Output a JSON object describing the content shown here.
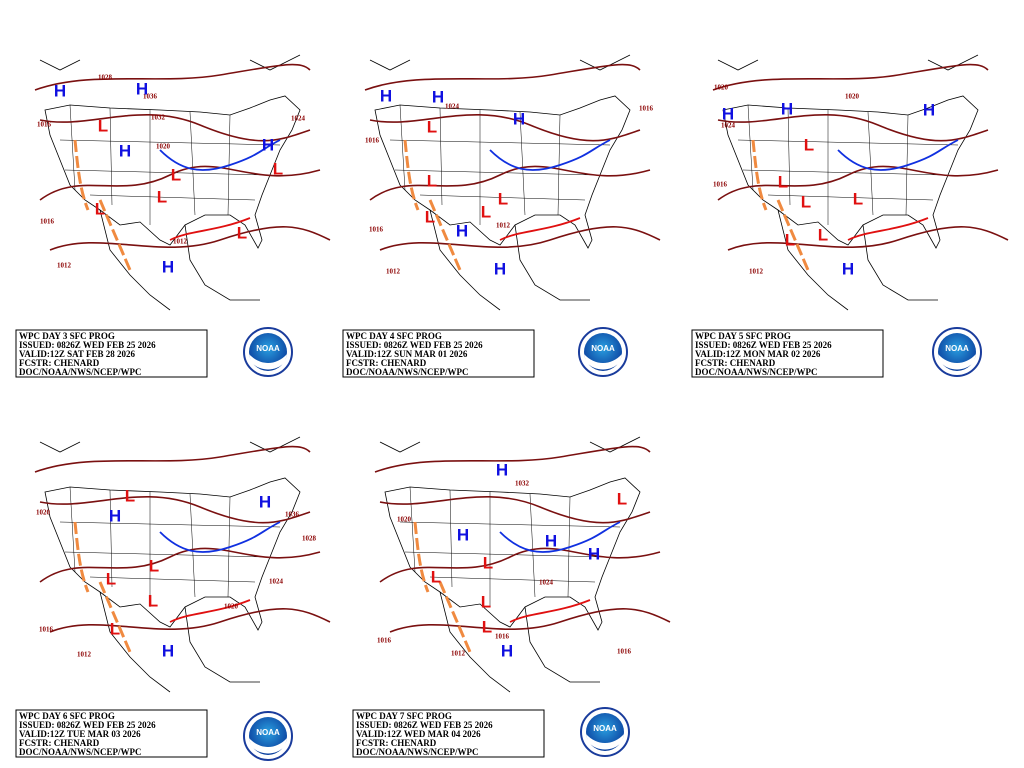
{
  "logo_text": "NOAA",
  "panels": [
    {
      "caption": [
        "WPC DAY 3 SFC PROG",
        "ISSUED: 0826Z WED FEB 25 2026",
        "VALID:12Z SAT FEB 28 2026",
        "FCSTR: CHENARD",
        "DOC/NOAA/NWS/NCEP/WPC"
      ],
      "centers": [
        "H",
        "H",
        "L",
        "H",
        "L",
        "L",
        "L",
        "H",
        "L",
        "L",
        "H"
      ],
      "isobars": [
        "1028",
        "1036",
        "1032",
        "1016",
        "1016",
        "1012",
        "1012",
        "1024",
        "1020"
      ]
    },
    {
      "caption": [
        "WPC DAY 4 SFC PROG",
        "ISSUED: 0826Z WED FEB 25 2026",
        "VALID:12Z SUN MAR 01 2026",
        "FCSTR: CHENARD",
        "DOC/NOAA/NWS/NCEP/WPC"
      ],
      "centers": [
        "H",
        "H",
        "L",
        "H",
        "L",
        "L",
        "L",
        "L",
        "H",
        "H"
      ],
      "isobars": [
        "1016",
        "1016",
        "1012",
        "1016",
        "1012",
        "1024"
      ]
    },
    {
      "caption": [
        "WPC DAY 5 SFC PROG",
        "ISSUED: 0826Z WED FEB 25 2026",
        "VALID:12Z MON MAR 02 2026",
        "FCSTR: CHENARD",
        "DOC/NOAA/NWS/NCEP/WPC"
      ],
      "centers": [
        "H",
        "H",
        "H",
        "L",
        "L",
        "L",
        "L",
        "L",
        "L",
        "H"
      ],
      "isobars": [
        "1020",
        "1024",
        "1016",
        "1012",
        "1020"
      ]
    },
    {
      "caption": [
        "WPC DAY 6 SFC PROG",
        "ISSUED: 0826Z WED FEB 25 2026",
        "VALID:12Z TUE MAR 03 2026",
        "FCSTR: CHENARD",
        "DOC/NOAA/NWS/NCEP/WPC"
      ],
      "centers": [
        "H",
        "L",
        "H",
        "L",
        "L",
        "L",
        "L",
        "H"
      ],
      "isobars": [
        "1020",
        "1016",
        "1012",
        "1024",
        "1020",
        "1028",
        "1036"
      ]
    },
    {
      "caption": [
        "WPC DAY 7 SFC PROG",
        "ISSUED: 0826Z WED FEB 25 2026",
        "VALID:12Z WED MAR 04 2026",
        "FCSTR: CHENARD",
        "DOC/NOAA/NWS/NCEP/WPC"
      ],
      "centers": [
        "H",
        "H",
        "H",
        "H",
        "L",
        "L",
        "L",
        "L",
        "L",
        "H"
      ],
      "isobars": [
        "1016",
        "1012",
        "1016",
        "1016",
        "1020",
        "1032",
        "1024"
      ]
    }
  ]
}
